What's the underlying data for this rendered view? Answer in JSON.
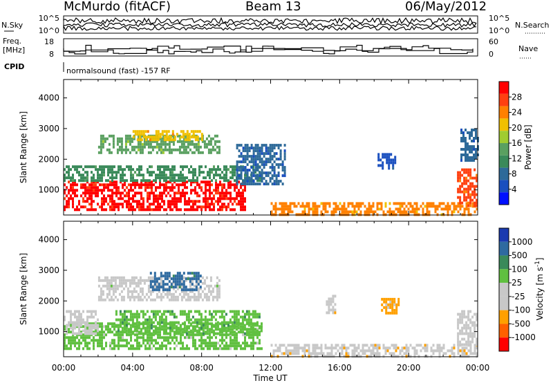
{
  "header": {
    "station": "McMurdo (fitACF)",
    "beam": "Beam 13",
    "date": "06/May/2012"
  },
  "noise_panel": {
    "left_label": "N.Sky",
    "right_label": "N.Search",
    "left_ticks": [
      "10^5",
      "10^0"
    ],
    "right_ticks": [
      "10^5",
      "10^0"
    ]
  },
  "freq_panel": {
    "left_label_1": "Freq.",
    "left_label_2": "[MHz]",
    "left_ticks": [
      "18",
      "8"
    ],
    "right_label": "Nave",
    "right_ticks": [
      "60",
      "0"
    ]
  },
  "cpid": {
    "label": "CPID",
    "text": "normalsound (fast) -157 RF"
  },
  "colors": {
    "power": [
      "#0010ff",
      "#1a4fbf",
      "#2e6a99",
      "#3a8a5a",
      "#5aa060",
      "#a0cc30",
      "#f0c000",
      "#ff8000",
      "#ff4010",
      "#ff0000"
    ],
    "velocity": [
      "#ff0000",
      "#ff6000",
      "#ffa000",
      "#c8c8c8",
      "#c8c8c8",
      "#60c040",
      "#3a8a5a",
      "#2e6aa0",
      "#1a3ab0"
    ],
    "ground_scatter": "#c8c8c8"
  },
  "chart_data": [
    {
      "type": "heatmap",
      "title": "",
      "ylabel": "Slant Range [km]",
      "xlabel": "",
      "ylim": [
        180,
        4600
      ],
      "xlim": [
        "00:00",
        "24:00"
      ],
      "y_ticks": [
        "1000",
        "2000",
        "3000",
        "4000"
      ],
      "x_ticks": [
        "00:00",
        "04:00",
        "08:00",
        "12:00",
        "16:00",
        "20:00",
        "00:00"
      ],
      "colorbar": {
        "label": "Power [dB]",
        "ticks": [
          "28",
          "24",
          "20",
          "16",
          "12",
          "8",
          "4"
        ],
        "range": [
          0,
          30
        ]
      },
      "regions": [
        {
          "t": [
            0,
            10.5
          ],
          "range": [
            350,
            1300
          ],
          "value": 27
        },
        {
          "t": [
            0,
            11.5
          ],
          "range": [
            1300,
            1800
          ],
          "value": 11
        },
        {
          "t": [
            2,
            9
          ],
          "range": [
            2200,
            2800
          ],
          "value": 14
        },
        {
          "t": [
            4,
            8
          ],
          "range": [
            2600,
            2950
          ],
          "value": 20
        },
        {
          "t": [
            10,
            12.8
          ],
          "range": [
            1200,
            2500
          ],
          "value": 6
        },
        {
          "t": [
            12,
            24
          ],
          "range": [
            200,
            600
          ],
          "value": 22
        },
        {
          "t": [
            18.2,
            19.2
          ],
          "range": [
            1700,
            2200
          ],
          "value": 5
        },
        {
          "t": [
            22.8,
            24
          ],
          "range": [
            500,
            1700
          ],
          "value": 24
        },
        {
          "t": [
            23,
            24
          ],
          "range": [
            2000,
            3000
          ],
          "value": 7
        }
      ]
    },
    {
      "type": "heatmap",
      "title": "",
      "ylabel": "Slant Range [km]",
      "xlabel": "Time UT",
      "ylim": [
        180,
        4600
      ],
      "xlim": [
        "00:00",
        "24:00"
      ],
      "y_ticks": [
        "1000",
        "2000",
        "3000",
        "4000"
      ],
      "x_ticks": [
        "00:00",
        "04:00",
        "08:00",
        "12:00",
        "16:00",
        "20:00",
        "00:00"
      ],
      "colorbar": {
        "label": "Velocity [m s^-1]",
        "label_text": "Velocity",
        "units_text": "[m s",
        "units_exp": "-1",
        "units_close": "]",
        "ticks": [
          "1000",
          "500",
          "100",
          "25",
          "-25",
          "-100",
          "-500",
          "-1000"
        ],
        "range": [
          -1000,
          1000
        ]
      },
      "regions": [
        {
          "t": [
            0,
            11.5
          ],
          "range": [
            400,
            1300
          ],
          "value": 200
        },
        {
          "t": [
            0,
            2
          ],
          "range": [
            900,
            1700
          ],
          "value": -200
        },
        {
          "t": [
            3,
            11.5
          ],
          "range": [
            900,
            1700
          ],
          "value": 300
        },
        {
          "t": [
            2,
            9
          ],
          "range": [
            2000,
            2800
          ],
          "value": 0
        },
        {
          "t": [
            5,
            8
          ],
          "range": [
            2400,
            2950
          ],
          "value": 600
        },
        {
          "t": [
            12,
            24
          ],
          "range": [
            200,
            600
          ],
          "value": -300
        },
        {
          "t": [
            15.2,
            15.8
          ],
          "range": [
            1600,
            2200
          ],
          "value": -300
        },
        {
          "t": [
            18.4,
            19.4
          ],
          "range": [
            1600,
            2100
          ],
          "value": -400
        },
        {
          "t": [
            22.8,
            24
          ],
          "range": [
            600,
            1700
          ],
          "value": -200
        }
      ]
    }
  ]
}
